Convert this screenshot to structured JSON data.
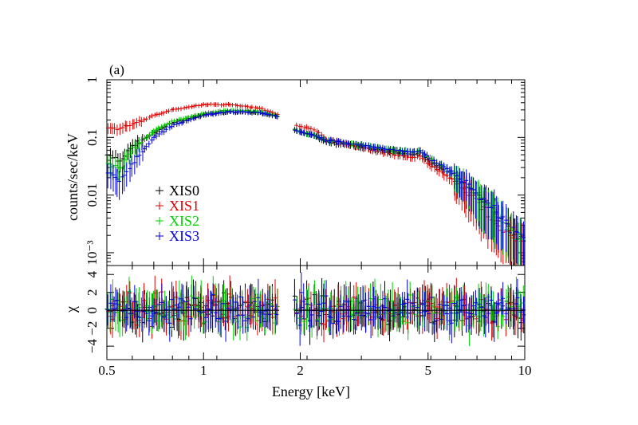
{
  "panel_label": "(a)",
  "chart_data": {
    "type": "scatter",
    "x_scale": "log",
    "xlim": [
      0.5,
      10
    ],
    "xlabel": "Energy [keV]",
    "x_ticks": [
      "0.5",
      "1",
      "2",
      "5",
      "10"
    ],
    "colors": {
      "XIS0": "#000000",
      "XIS1": "#e00000",
      "XIS2": "#00d000",
      "XIS3": "#0000e0"
    },
    "legend_position": "lower-left",
    "panels": [
      {
        "name": "spectrum",
        "ylabel": "counts/sec/keV",
        "y_scale": "log",
        "ylim": [
          0.0006,
          1
        ],
        "y_ticks": [
          "1",
          "0.1",
          "0.01",
          "10⁻³"
        ],
        "series": [
          {
            "name": "XIS0",
            "x": [
              0.5,
              0.55,
              0.6,
              0.7,
              0.8,
              1.0,
              1.2,
              1.5,
              1.7,
              1.95,
              2.2,
              2.4,
              3,
              4,
              4.5,
              4.7,
              5,
              6,
              7,
              8,
              9,
              10
            ],
            "y": [
              0.05,
              0.04,
              0.07,
              0.12,
              0.18,
              0.25,
              0.28,
              0.27,
              0.23,
              0.13,
              0.11,
              0.085,
              0.07,
              0.055,
              0.05,
              0.055,
              0.04,
              0.022,
              0.011,
              0.005,
              0.0025,
              0.0015
            ]
          },
          {
            "name": "XIS1",
            "x": [
              0.5,
              0.55,
              0.6,
              0.7,
              0.8,
              1.0,
              1.2,
              1.5,
              1.7,
              1.95,
              2.2,
              2.4,
              3,
              4,
              4.5,
              4.7,
              5,
              6,
              7,
              8,
              9,
              10
            ],
            "y": [
              0.15,
              0.14,
              0.17,
              0.24,
              0.3,
              0.37,
              0.37,
              0.32,
              0.25,
              0.16,
              0.14,
              0.095,
              0.07,
              0.05,
              0.045,
              0.05,
              0.035,
              0.018,
              0.009,
              0.004,
              0.002,
              0.0013
            ]
          },
          {
            "name": "XIS2",
            "x": [
              0.5,
              0.55,
              0.6,
              0.7,
              0.8,
              1.0,
              1.2,
              1.5,
              1.7,
              1.95,
              2.2,
              2.4,
              3,
              4,
              4.5,
              4.7,
              5,
              6,
              7,
              8,
              9,
              10
            ],
            "y": [
              0.035,
              0.03,
              0.06,
              0.13,
              0.19,
              0.26,
              0.3,
              0.28,
              0.24,
              0.13,
              0.11,
              0.09,
              0.075,
              0.06,
              0.055,
              0.06,
              0.045,
              0.024,
              0.012,
              0.0055,
              0.0028,
              0.0017
            ]
          },
          {
            "name": "XIS3",
            "x": [
              0.5,
              0.55,
              0.6,
              0.7,
              0.8,
              1.0,
              1.2,
              1.5,
              1.7,
              1.95,
              2.2,
              2.4,
              3,
              4,
              4.5,
              4.7,
              5,
              6,
              7,
              8,
              9,
              10
            ],
            "y": [
              0.025,
              0.018,
              0.035,
              0.1,
              0.16,
              0.24,
              0.28,
              0.27,
              0.23,
              0.13,
              0.11,
              0.09,
              0.075,
              0.06,
              0.055,
              0.06,
              0.045,
              0.024,
              0.012,
              0.0055,
              0.0028,
              0.0017
            ]
          }
        ]
      },
      {
        "name": "residuals",
        "ylabel": "χ",
        "y_scale": "linear",
        "ylim": [
          -5.5,
          5
        ],
        "y_ticks": [
          "4",
          "2",
          "0",
          "−2",
          "−4"
        ],
        "y_tick_values": [
          4,
          2,
          0,
          -2,
          -4
        ],
        "reference_line": 0,
        "residual_spread": 2.5
      }
    ]
  }
}
